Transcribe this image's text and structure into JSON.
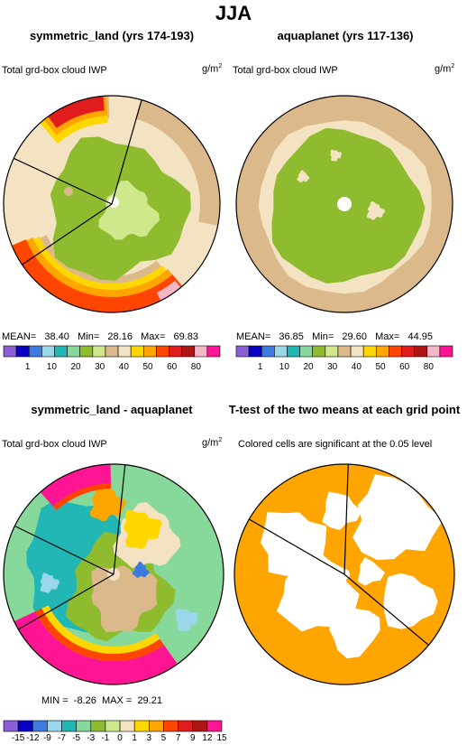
{
  "page_title": "JJA",
  "colors": {
    "cloud_scale": [
      "#8c5fd6",
      "#0a00c4",
      "#3d7be0",
      "#9bd7ea",
      "#22b7b5",
      "#86d89b",
      "#8fbc2f",
      "#cfe88c",
      "#dcb98a",
      "#f3e3c2",
      "#ffd700",
      "#ffa500",
      "#ff4500",
      "#e01c1c",
      "#ae1616",
      "#f7b6c8",
      "#ff1493"
    ],
    "t_test_fill": "#ffa500",
    "line": "#000000"
  },
  "chart_data": [
    {
      "type": "heatmap",
      "title": "symmetric_land (yrs 174-193)",
      "left_label": "Total grd-box cloud IWP",
      "units_base": "g/m",
      "units_exp": "2",
      "stats": {
        "mean_label": "MEAN=",
        "mean": "38.40",
        "min_label": "Min=",
        "min": "28.16",
        "max_label": "Max=",
        "max": "69.83"
      },
      "colorbar_labels": [
        "1",
        "10",
        "20",
        "30",
        "40",
        "50",
        "60",
        "80"
      ]
    },
    {
      "type": "heatmap",
      "title": "aquaplanet (yrs 117-136)",
      "left_label": "Total grd-box cloud IWP",
      "units_base": "g/m",
      "units_exp": "2",
      "stats": {
        "mean_label": "MEAN=",
        "mean": "36.85",
        "min_label": "Min=",
        "min": "29.60",
        "max_label": "Max=",
        "max": "44.95"
      },
      "colorbar_labels": [
        "1",
        "10",
        "20",
        "30",
        "40",
        "50",
        "60",
        "80"
      ]
    },
    {
      "type": "heatmap",
      "title": "symmetric_land - aquaplanet",
      "left_label": "Total grd-box cloud IWP",
      "units_base": "g/m",
      "units_exp": "2",
      "stats": {
        "min_label": "MIN =",
        "min": "-8.26",
        "max_label": "MAX =",
        "max": "29.21"
      },
      "colorbar_labels": [
        "-15",
        "-12",
        "-9",
        "-7",
        "-5",
        "-3",
        "-1",
        "0",
        "1",
        "3",
        "5",
        "7",
        "9",
        "12",
        "15"
      ]
    },
    {
      "type": "heatmap",
      "title": "T-test of the two means at each grid point",
      "left_label": "Colored cells are significant at the 0.05 level"
    }
  ]
}
